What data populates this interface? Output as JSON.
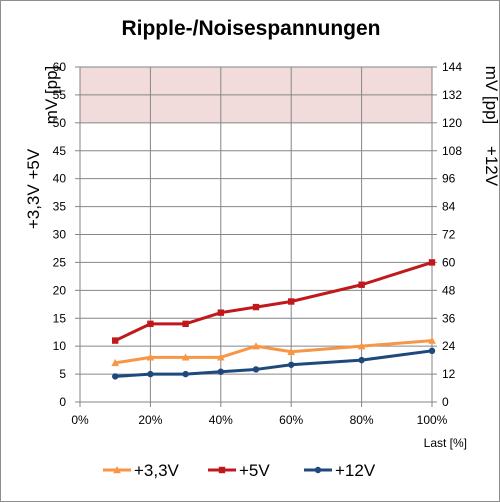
{
  "chart_data": {
    "type": "line",
    "title": "Ripple-/Noisespannungen",
    "xlabel": "Last [%]",
    "ylabel_left": [
      "+3,3V +5V",
      "mV [pp]"
    ],
    "ylabel_right": [
      "+12V",
      "mV [pp]"
    ],
    "x_ticks": [
      "0%",
      "20%",
      "40%",
      "60%",
      "80%",
      "100%"
    ],
    "xlim": [
      0,
      100
    ],
    "ylim_left": [
      0,
      60
    ],
    "ylim_right": [
      0,
      144
    ],
    "y_ticks_left": [
      "0",
      "5",
      "10",
      "15",
      "20",
      "25",
      "30",
      "35",
      "40",
      "45",
      "50",
      "55",
      "60"
    ],
    "y_ticks_right": [
      "0",
      "12",
      "24",
      "36",
      "48",
      "60",
      "72",
      "84",
      "96",
      "108",
      "120",
      "132",
      "144"
    ],
    "limit_band": {
      "from": 50,
      "to": 60,
      "axis": "left",
      "color": "#f2dcdb"
    },
    "grid": true,
    "legend_position": "bottom",
    "series": [
      {
        "name": "+3,3V",
        "axis": "left",
        "color": "#f79646",
        "marker": "triangle",
        "x": [
          10,
          20,
          30,
          40,
          50,
          60,
          80,
          100
        ],
        "values": [
          7,
          8,
          8,
          8,
          10,
          9,
          10,
          11
        ]
      },
      {
        "name": "+5V",
        "axis": "left",
        "color": "#c0191c",
        "marker": "square",
        "x": [
          10,
          20,
          30,
          40,
          50,
          60,
          80,
          100
        ],
        "values": [
          11,
          14,
          14,
          16,
          17,
          18,
          21,
          25
        ]
      },
      {
        "name": "+12V",
        "axis": "right",
        "color": "#1f497d",
        "marker": "circle",
        "x": [
          10,
          20,
          30,
          40,
          50,
          60,
          80,
          100
        ],
        "values": [
          11,
          12,
          12,
          13,
          14,
          16,
          18,
          22
        ]
      }
    ]
  }
}
